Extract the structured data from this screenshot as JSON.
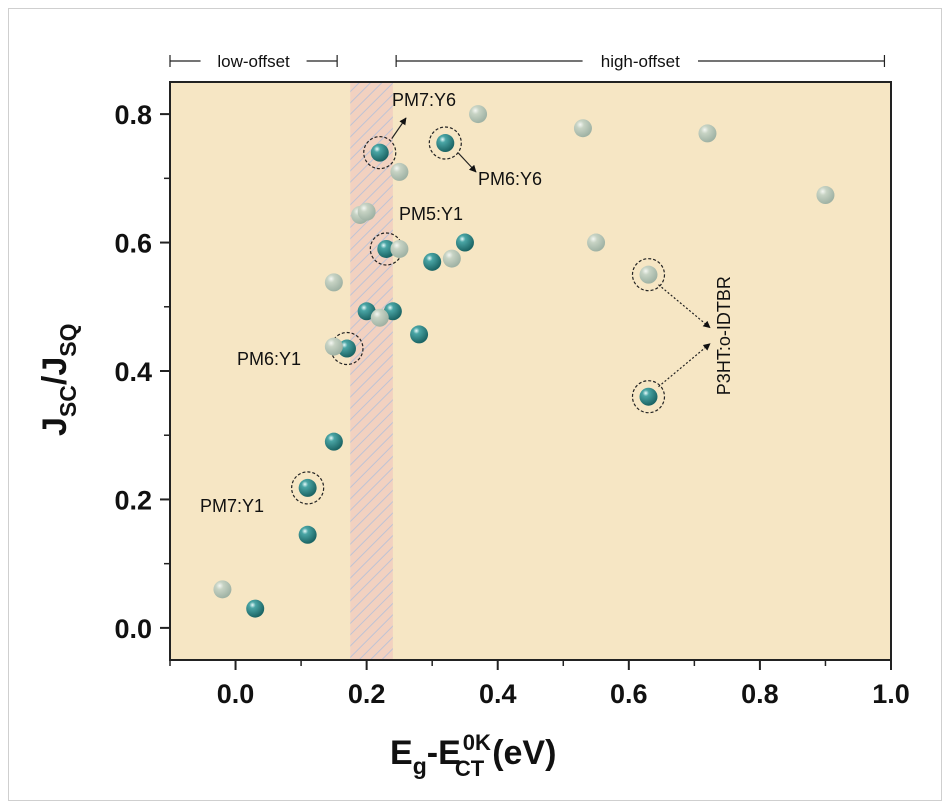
{
  "chart_data": {
    "type": "scatter",
    "xlabel": "E_g-E_CT^0K (eV)",
    "ylabel": "J_SC/J_SQ",
    "xlim": [
      -0.1,
      1.0
    ],
    "ylim": [
      -0.05,
      0.85
    ],
    "xticks": [
      "0.0",
      "0.2",
      "0.4",
      "0.6",
      "0.8",
      "1.0"
    ],
    "yticks": [
      "0.0",
      "0.2",
      "0.4",
      "0.6",
      "0.8"
    ],
    "xtick_values": [
      0.0,
      0.2,
      0.4,
      0.6,
      0.8,
      1.0
    ],
    "ytick_values": [
      0.0,
      0.2,
      0.4,
      0.6,
      0.8
    ],
    "regions": [
      {
        "label": "low-offset",
        "x_range": [
          -0.1,
          0.155
        ]
      },
      {
        "label": "high-offset",
        "x_range": [
          0.245,
          0.99
        ]
      }
    ],
    "shaded_band": {
      "x_range": [
        0.175,
        0.24
      ]
    },
    "series": [
      {
        "color": "#2a8080",
        "points": [
          {
            "x": 0.03,
            "y": 0.03
          },
          {
            "x": 0.11,
            "y": 0.145
          },
          {
            "x": 0.11,
            "y": 0.218
          },
          {
            "x": 0.15,
            "y": 0.29
          },
          {
            "x": 0.17,
            "y": 0.435
          },
          {
            "x": 0.2,
            "y": 0.493
          },
          {
            "x": 0.24,
            "y": 0.493
          },
          {
            "x": 0.28,
            "y": 0.457
          },
          {
            "x": 0.23,
            "y": 0.59
          },
          {
            "x": 0.3,
            "y": 0.57
          },
          {
            "x": 0.35,
            "y": 0.6
          },
          {
            "x": 0.22,
            "y": 0.74
          },
          {
            "x": 0.32,
            "y": 0.755
          },
          {
            "x": 0.63,
            "y": 0.36
          }
        ]
      },
      {
        "color": "#b7c7b5",
        "points": [
          {
            "x": -0.02,
            "y": 0.06
          },
          {
            "x": 0.15,
            "y": 0.438
          },
          {
            "x": 0.15,
            "y": 0.538
          },
          {
            "x": 0.22,
            "y": 0.483
          },
          {
            "x": 0.19,
            "y": 0.643
          },
          {
            "x": 0.2,
            "y": 0.648
          },
          {
            "x": 0.25,
            "y": 0.59
          },
          {
            "x": 0.33,
            "y": 0.575
          },
          {
            "x": 0.25,
            "y": 0.71
          },
          {
            "x": 0.37,
            "y": 0.8
          },
          {
            "x": 0.53,
            "y": 0.778
          },
          {
            "x": 0.55,
            "y": 0.6
          },
          {
            "x": 0.63,
            "y": 0.55
          },
          {
            "x": 0.72,
            "y": 0.77
          },
          {
            "x": 0.9,
            "y": 0.674
          }
        ]
      }
    ],
    "annotations": [
      {
        "text": "PM7:Y6",
        "x": 0.22,
        "y": 0.74
      },
      {
        "text": "PM6:Y6",
        "x": 0.32,
        "y": 0.755
      },
      {
        "text": "PM5:Y1",
        "x": 0.23,
        "y": 0.59
      },
      {
        "text": "PM6:Y1",
        "x": 0.17,
        "y": 0.435
      },
      {
        "text": "PM7:Y1",
        "x": 0.11,
        "y": 0.218
      },
      {
        "text": "P3HT:o-IDTBR",
        "x": 0.63,
        "y": 0.455
      }
    ],
    "grid": false,
    "background": "#f6e6c4"
  }
}
